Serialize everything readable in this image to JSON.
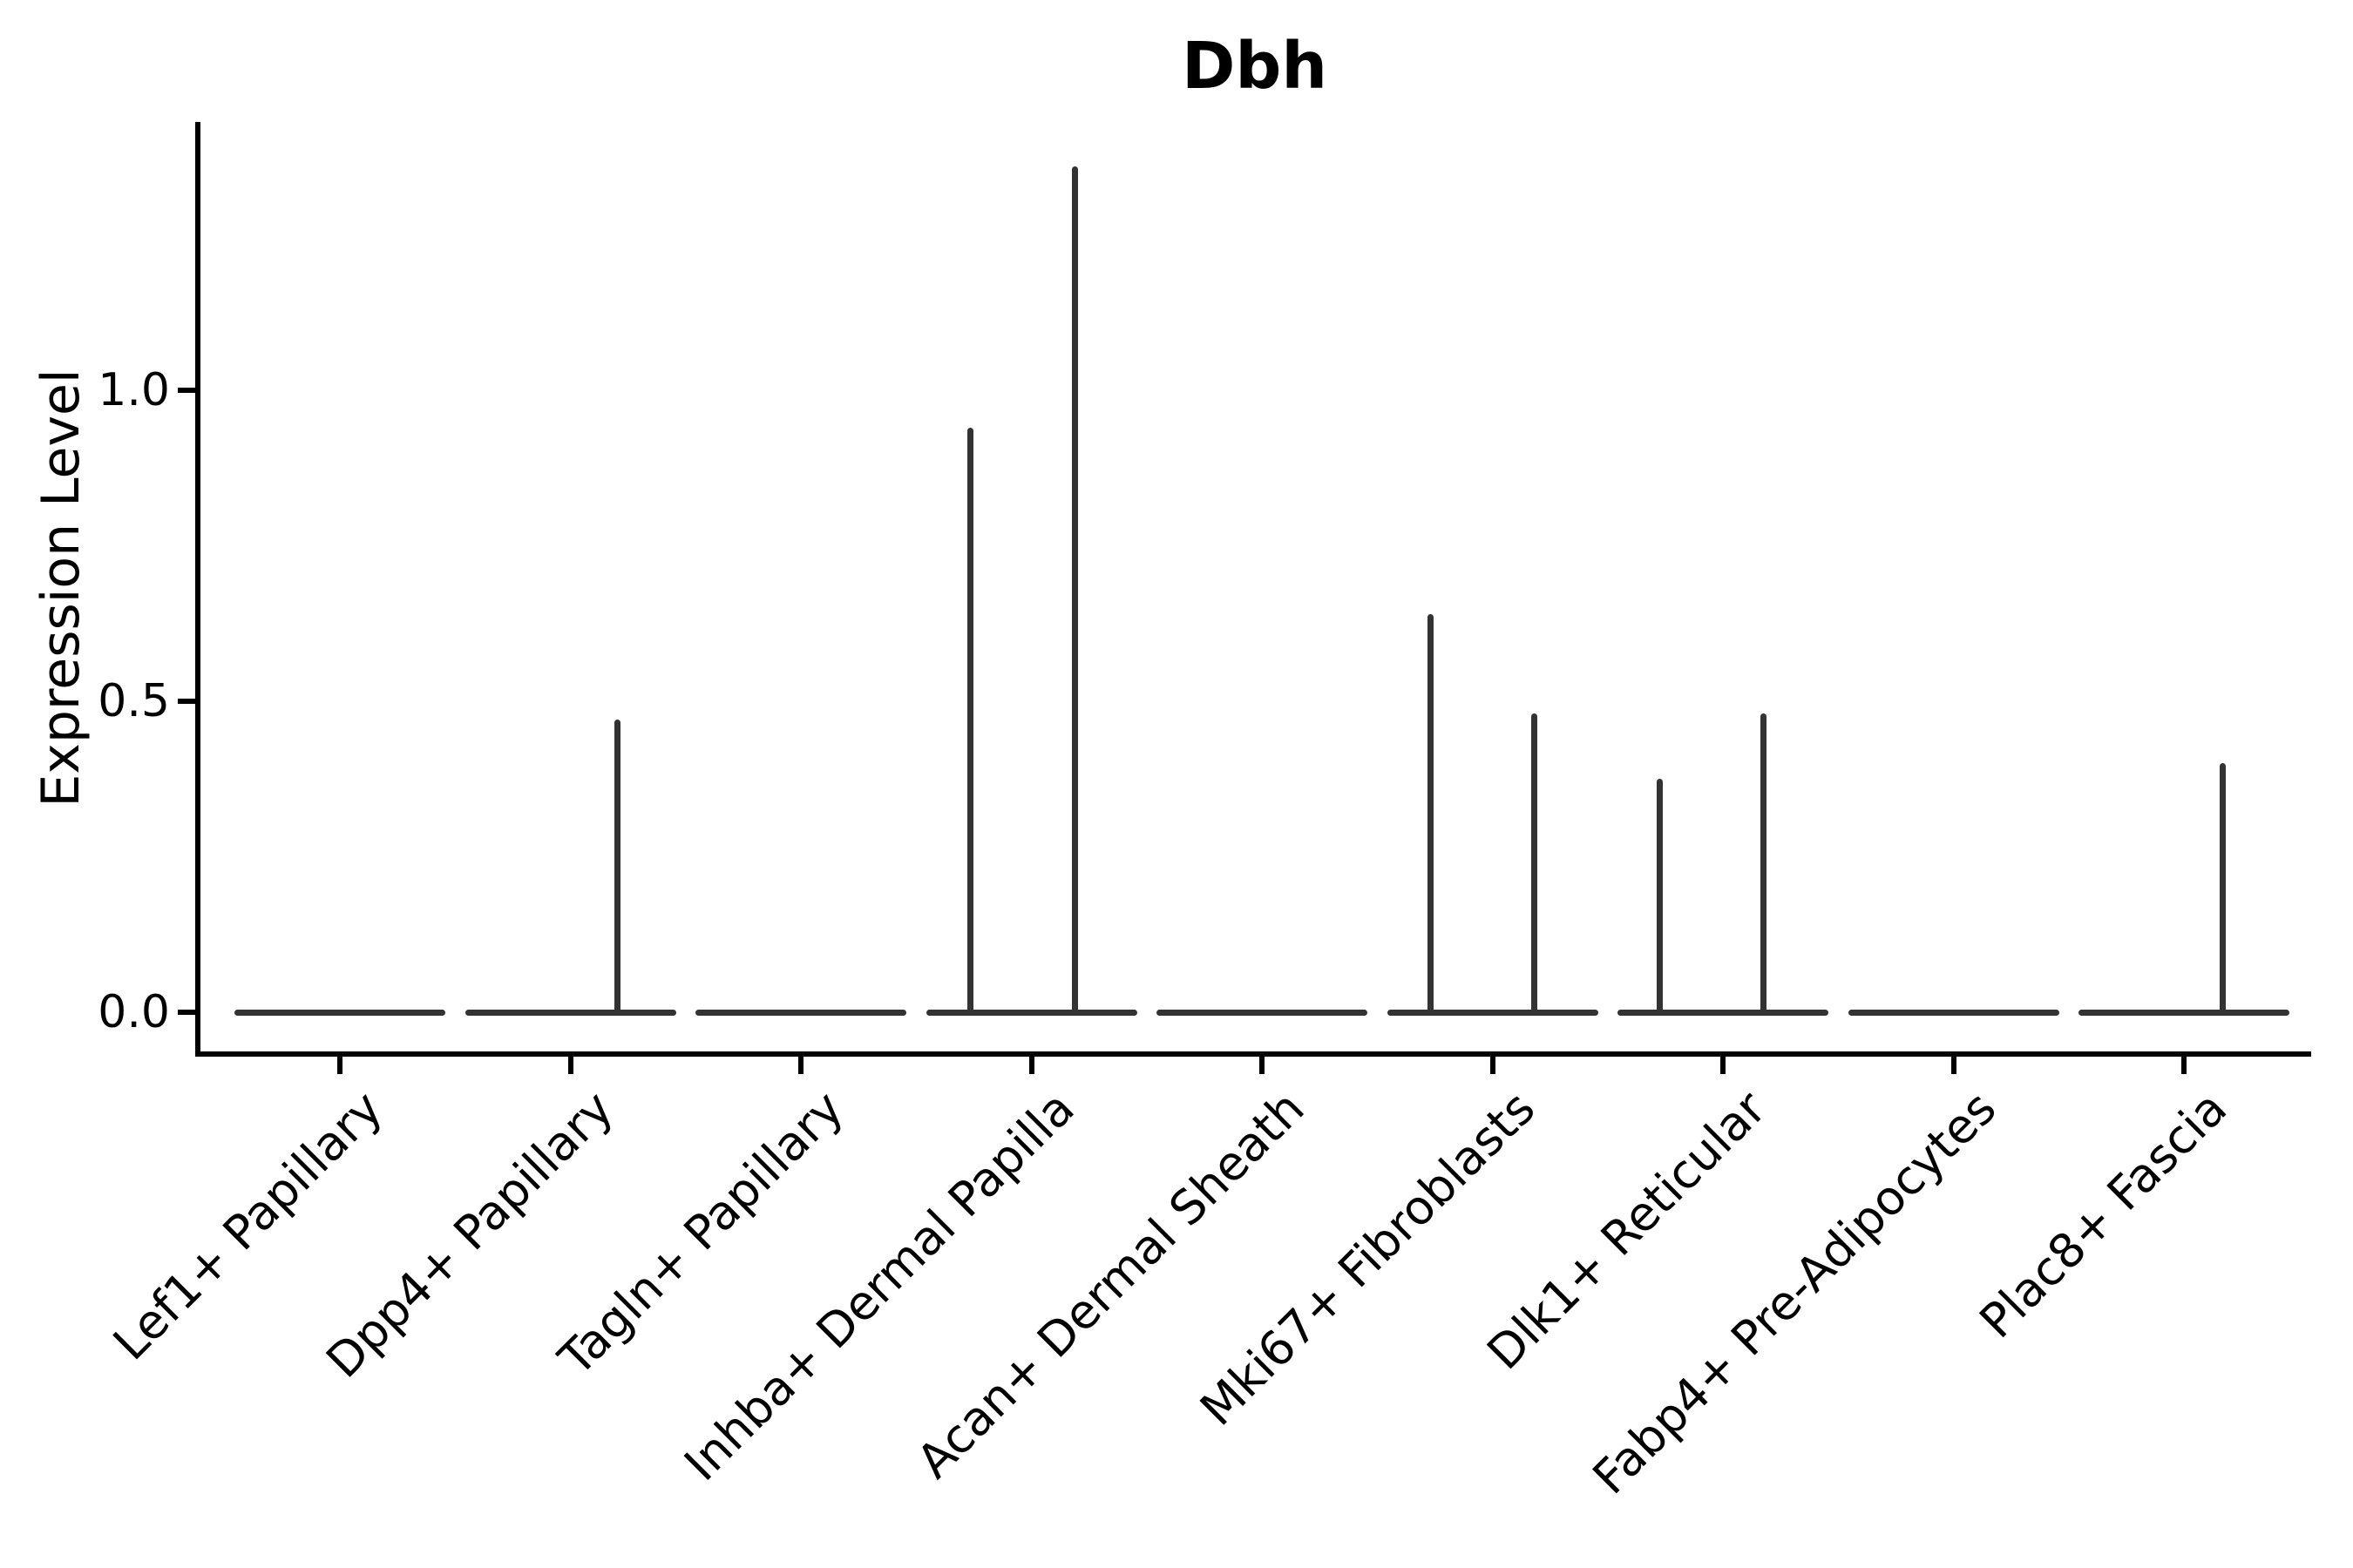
{
  "figure": {
    "background": "#ffffff"
  },
  "chart_data": {
    "type": "violin",
    "title": "Dbh",
    "xlabel": "",
    "ylabel": "Expression Level",
    "ylim": [
      -0.07,
      1.43
    ],
    "yticks": [
      0.0,
      0.5,
      1.0
    ],
    "ytick_labels": [
      "0.0",
      "0.5",
      "1.0"
    ],
    "grid": false,
    "legend": "none",
    "colors": {
      "violin": "#333333",
      "axis": "#000000",
      "text": "#000000"
    },
    "categories": [
      "Lef1+ Papillary",
      "Dpp4+ Papillary",
      "Tagln+ Papillary",
      "Inhba+ Dermal Papilla",
      "Acan+ Dermal Sheath",
      "Mki67+ Fibroblasts",
      "Dlk1+ Reticular",
      "Fabp4+ Pre-Adipocytes",
      "Plac8+ Fascia"
    ],
    "series": [
      {
        "name": "Lef1+ Papillary",
        "baseline": 0,
        "spikes": []
      },
      {
        "name": "Dpp4+ Papillary",
        "baseline": 0,
        "spikes": [
          {
            "value": 0.47,
            "dx": 54
          }
        ]
      },
      {
        "name": "Tagln+ Papillary",
        "baseline": 0,
        "spikes": []
      },
      {
        "name": "Inhba+ Dermal Papilla",
        "baseline": 0,
        "spikes": [
          {
            "value": 0.94,
            "dx": -70
          },
          {
            "value": 1.36,
            "dx": 50
          }
        ]
      },
      {
        "name": "Acan+ Dermal Sheath",
        "baseline": 0,
        "spikes": []
      },
      {
        "name": "Mki67+ Fibroblasts",
        "baseline": 0,
        "spikes": [
          {
            "value": 0.64,
            "dx": -71
          },
          {
            "value": 0.48,
            "dx": 48
          }
        ]
      },
      {
        "name": "Dlk1+ Reticular",
        "baseline": 0,
        "spikes": [
          {
            "value": 0.375,
            "dx": -73
          },
          {
            "value": 0.48,
            "dx": 46
          }
        ]
      },
      {
        "name": "Fabp4+ Pre-Adipocytes",
        "baseline": 0,
        "spikes": []
      },
      {
        "name": "Plac8+ Fascia",
        "baseline": 0,
        "spikes": [
          {
            "value": 0.4,
            "dx": 44
          }
        ]
      }
    ]
  }
}
